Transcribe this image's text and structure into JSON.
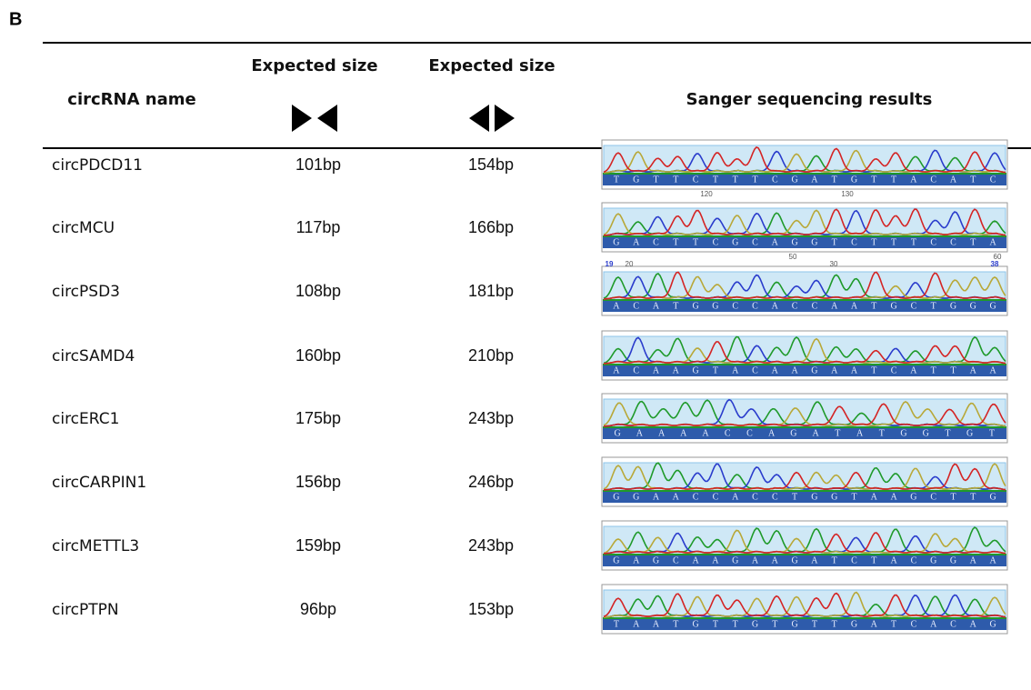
{
  "panel_label": "B",
  "header": {
    "name": "circRNA name",
    "size_convergent": "Expected size",
    "size_divergent": "Expected size",
    "results": "Sanger sequencing results"
  },
  "rows": [
    {
      "name": "circPDCD11",
      "convergent": "101bp",
      "divergent": "154bp",
      "sequence": [
        "T",
        "G",
        "T",
        "T",
        "C",
        "T",
        "T",
        "T",
        "C",
        "G",
        "A",
        "T",
        "G",
        "T",
        "T",
        "A",
        "C",
        "A",
        "T",
        "C"
      ],
      "ruler": [
        "120",
        "130"
      ]
    },
    {
      "name": "circMCU",
      "convergent": "117bp",
      "divergent": "166bp",
      "sequence": [
        "G",
        "A",
        "C",
        "T",
        "T",
        "C",
        "G",
        "C",
        "A",
        "G",
        "G",
        "T",
        "C",
        "T",
        "T",
        "T",
        "C",
        "C",
        "T",
        "A"
      ],
      "ruler": [
        "50",
        "60"
      ]
    },
    {
      "name": "circPSD3",
      "convergent": "108bp",
      "divergent": "181bp",
      "sequence": [
        "A",
        "C",
        "A",
        "T",
        "G",
        "G",
        "C",
        "C",
        "A",
        "C",
        "C",
        "A",
        "A",
        "T",
        "G",
        "C",
        "T",
        "G",
        "G",
        "G"
      ],
      "ruler": [
        "19",
        "20",
        "30",
        "38"
      ]
    },
    {
      "name": "circSAMD4",
      "convergent": "160bp",
      "divergent": "210bp",
      "sequence": [
        "A",
        "C",
        "A",
        "A",
        "G",
        "T",
        "A",
        "C",
        "A",
        "A",
        "G",
        "A",
        "A",
        "T",
        "C",
        "A",
        "T",
        "T",
        "A",
        "A"
      ]
    },
    {
      "name": "circERC1",
      "convergent": "175bp",
      "divergent": "243bp",
      "sequence": [
        "G",
        "A",
        "A",
        "A",
        "A",
        "C",
        "C",
        "A",
        "G",
        "A",
        "T",
        "A",
        "T",
        "G",
        "G",
        "T",
        "G",
        "T"
      ]
    },
    {
      "name": "circCARPIN1",
      "convergent": "156bp",
      "divergent": "246bp",
      "sequence": [
        "G",
        "G",
        "A",
        "A",
        "C",
        "C",
        "A",
        "C",
        "C",
        "T",
        "G",
        "G",
        "T",
        "A",
        "A",
        "G",
        "C",
        "T",
        "T",
        "G"
      ]
    },
    {
      "name": "circMETTL3",
      "convergent": "159bp",
      "divergent": "243bp",
      "sequence": [
        "G",
        "A",
        "G",
        "C",
        "A",
        "A",
        "G",
        "A",
        "A",
        "G",
        "A",
        "T",
        "C",
        "T",
        "A",
        "C",
        "G",
        "G",
        "A",
        "A"
      ]
    },
    {
      "name": "circPTPN",
      "convergent": "96bp",
      "divergent": "153bp",
      "sequence": [
        "T",
        "A",
        "A",
        "T",
        "G",
        "T",
        "T",
        "G",
        "T",
        "G",
        "T",
        "T",
        "G",
        "A",
        "T",
        "C",
        "A",
        "C",
        "A",
        "G"
      ]
    }
  ]
}
